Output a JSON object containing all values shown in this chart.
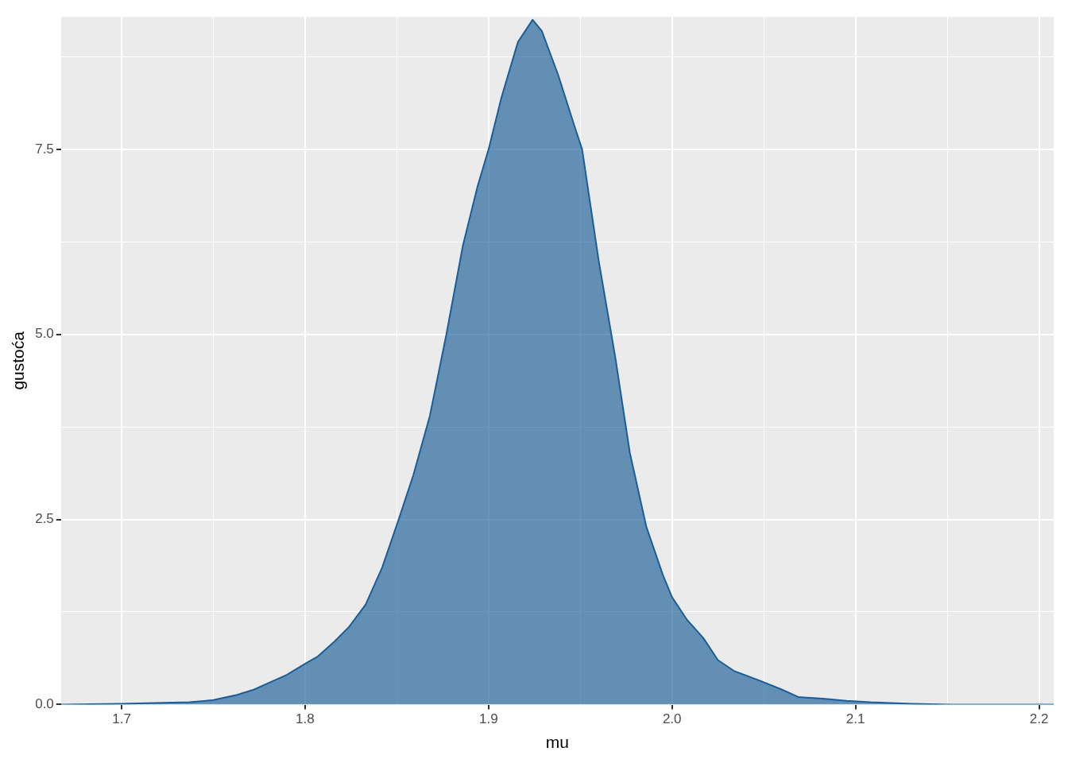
{
  "chart_data": {
    "type": "area",
    "xlabel": "mu",
    "ylabel": "gustoća",
    "xlim": [
      1.667,
      2.208
    ],
    "ylim": [
      0,
      9.29
    ],
    "xticks": [
      1.7,
      {
        "value": 1.75,
        "label": null
      },
      1.8,
      {
        "value": 1.85,
        "label": null
      },
      1.9,
      {
        "value": 1.95,
        "label": null
      },
      {
        "value": 2.0,
        "label": "2.0"
      },
      {
        "value": 2.05,
        "label": null
      },
      2.1,
      {
        "value": 2.15,
        "label": null
      },
      2.2
    ],
    "yticks": [
      {
        "value": 0,
        "label": "0.0"
      },
      {
        "value": 1.25,
        "label": null
      },
      2.5,
      {
        "value": 3.75,
        "label": null
      },
      {
        "value": 5,
        "label": "5.0"
      },
      {
        "value": 6.25,
        "label": null
      },
      7.5,
      {
        "value": 8.75,
        "label": null
      }
    ],
    "grid": true,
    "legend": false,
    "series": [
      {
        "color": "#1b5e97",
        "x": [
          1.667,
          1.7,
          1.737,
          1.75,
          1.763,
          1.772,
          1.781,
          1.79,
          1.8,
          1.807,
          1.816,
          1.824,
          1.833,
          1.842,
          1.851,
          1.859,
          1.868,
          1.877,
          1.886,
          1.894,
          1.9,
          1.907,
          1.916,
          1.924,
          1.929,
          1.938,
          1.947,
          1.951,
          1.96,
          1.969,
          1.977,
          1.986,
          1.995,
          2.0,
          2.008,
          2.017,
          2.025,
          2.034,
          2.047,
          2.06,
          2.069,
          2.082,
          2.095,
          2.108,
          2.13,
          2.152,
          2.208
        ],
        "values": [
          0,
          0.01,
          0.03,
          0.06,
          0.13,
          0.2,
          0.3,
          0.4,
          0.55,
          0.65,
          0.85,
          1.05,
          1.35,
          1.85,
          2.5,
          3.1,
          3.9,
          5.0,
          6.2,
          7.0,
          7.5,
          8.2,
          8.95,
          9.25,
          9.1,
          8.5,
          7.8,
          7.5,
          6.0,
          4.7,
          3.4,
          2.4,
          1.75,
          1.45,
          1.15,
          0.9,
          0.6,
          0.45,
          0.33,
          0.2,
          0.1,
          0.08,
          0.05,
          0.03,
          0.01,
          0,
          0
        ]
      }
    ]
  }
}
